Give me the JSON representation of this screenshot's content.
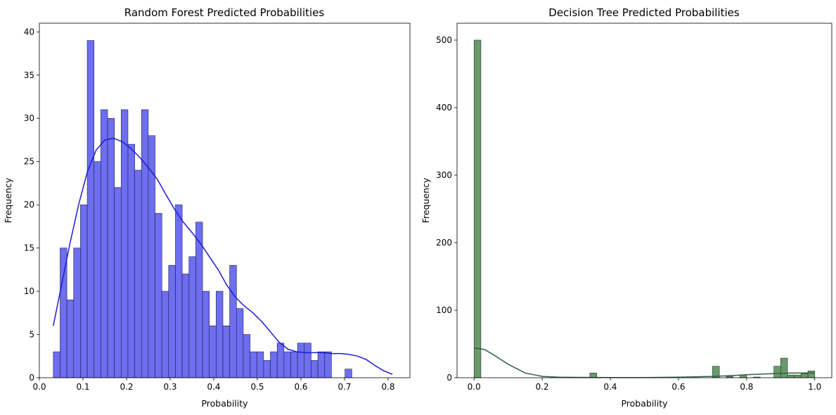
{
  "chart_data": [
    {
      "type": "bar",
      "title": "Random Forest Predicted Probabilities",
      "xlabel": "Probability",
      "ylabel": "Frequency",
      "xlim": [
        0.0,
        0.85
      ],
      "ylim": [
        0,
        41
      ],
      "xticks": [
        "0.0",
        "0.1",
        "0.2",
        "0.3",
        "0.4",
        "0.5",
        "0.6",
        "0.7",
        "0.8"
      ],
      "yticks": [
        "0",
        "5",
        "10",
        "15",
        "20",
        "25",
        "30",
        "35",
        "40"
      ],
      "bin_start": 0.032,
      "bin_width": 0.01556,
      "values": [
        3,
        15,
        9,
        15,
        20,
        39,
        25,
        31,
        30,
        22,
        31,
        27,
        24,
        31,
        28,
        19,
        10,
        13,
        20,
        12,
        14,
        18,
        10,
        6,
        10,
        6,
        13,
        8,
        5,
        3,
        3,
        2,
        3,
        4,
        3,
        3,
        4,
        4,
        2,
        3,
        3,
        0,
        0,
        1
      ],
      "bar_color": "#6e6ef0",
      "edge_color": "#1c1c4a",
      "kde": {
        "color": "#1c1cd9",
        "x": [
          0.032,
          0.05,
          0.07,
          0.09,
          0.11,
          0.13,
          0.15,
          0.17,
          0.19,
          0.21,
          0.23,
          0.25,
          0.27,
          0.29,
          0.31,
          0.33,
          0.35,
          0.37,
          0.39,
          0.41,
          0.43,
          0.45,
          0.47,
          0.49,
          0.51,
          0.53,
          0.55,
          0.57,
          0.59,
          0.61,
          0.63,
          0.65,
          0.67,
          0.69,
          0.71,
          0.73,
          0.75,
          0.77,
          0.79,
          0.81
        ],
        "y": [
          6,
          10.5,
          15.5,
          20,
          23.8,
          26.3,
          27.5,
          27.7,
          27.3,
          26.5,
          25.5,
          24.3,
          23,
          21.2,
          19.5,
          18,
          16.8,
          15.5,
          14,
          12.5,
          10.7,
          9.3,
          8.3,
          7.5,
          6.5,
          5.3,
          4.1,
          3.3,
          3,
          2.9,
          2.9,
          2.9,
          2.8,
          2.8,
          2.7,
          2.5,
          2.1,
          1.4,
          0.8,
          0.4
        ]
      }
    },
    {
      "type": "bar",
      "title": "Decision Tree Predicted Probabilities",
      "xlabel": "Probability",
      "ylabel": "Frequency",
      "xlim": [
        -0.05,
        1.05
      ],
      "ylim": [
        0,
        525
      ],
      "xticks": [
        "0.0",
        "0.2",
        "0.4",
        "0.6",
        "0.8",
        "1.0"
      ],
      "yticks": [
        "0",
        "100",
        "200",
        "300",
        "400",
        "500"
      ],
      "bin_start": 0.0,
      "bin_width": 0.02,
      "values": [
        500,
        0,
        0,
        0,
        0,
        0,
        0,
        0,
        0,
        0,
        0,
        0,
        0,
        0,
        0,
        0,
        0,
        7,
        0,
        0,
        0,
        0,
        0,
        0,
        0,
        0,
        0,
        0,
        0,
        0,
        0,
        0,
        0,
        0,
        0,
        17,
        0,
        2,
        0,
        4,
        0,
        1,
        0,
        0,
        17,
        29,
        4,
        4,
        6,
        10
      ],
      "bar_color": "#6a9a6a",
      "edge_color": "#1f331f",
      "kde": {
        "color": "#2d5f4a",
        "x": [
          0.0,
          0.03,
          0.06,
          0.1,
          0.15,
          0.2,
          0.25,
          0.3,
          0.4,
          0.5,
          0.6,
          0.7,
          0.75,
          0.8,
          0.85,
          0.9,
          0.95,
          1.0
        ],
        "y": [
          44,
          42,
          33,
          20,
          7,
          2,
          0.8,
          0.5,
          0.3,
          0.3,
          0.8,
          2,
          3,
          4.5,
          5.5,
          6.5,
          7,
          7
        ]
      }
    }
  ]
}
